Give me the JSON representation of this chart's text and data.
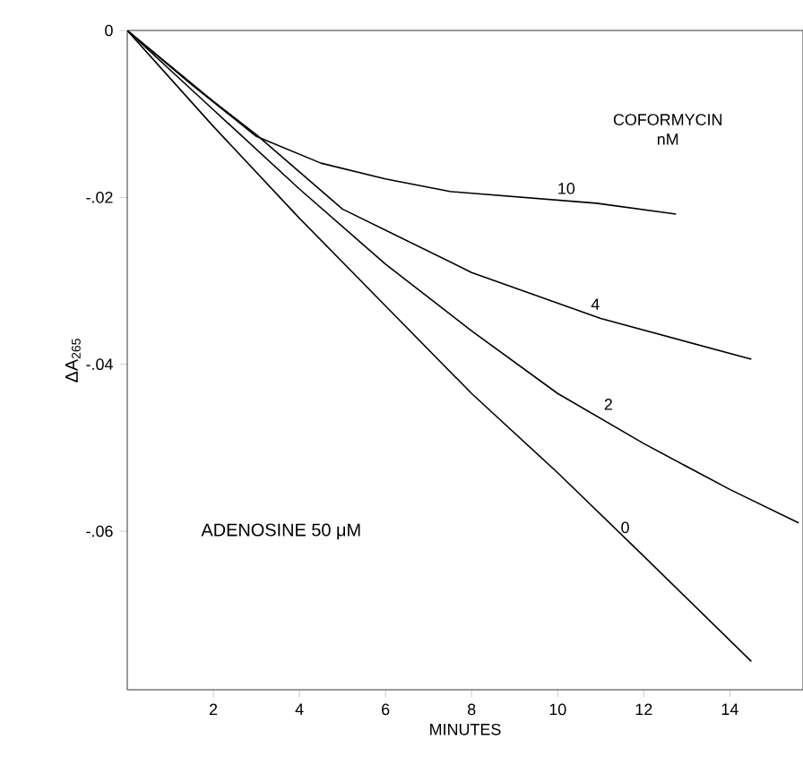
{
  "chart_data": {
    "type": "line",
    "xlabel": "MINUTES",
    "ylabel": "ΔA$_{265}$",
    "legend_title": "COFORMYCIN nM",
    "annotations": [
      "ADENOSINE 50 μM"
    ],
    "xlim": [
      0,
      15.7
    ],
    "ylim": [
      -0.079,
      0
    ],
    "xticks": [
      2,
      4,
      6,
      8,
      10,
      12,
      14
    ],
    "yticks": [
      {
        "value": 0,
        "label": "0"
      },
      {
        "value": -0.02,
        "label": "-.02"
      },
      {
        "value": -0.04,
        "label": "-.04"
      },
      {
        "value": -0.06,
        "label": "-.06"
      }
    ],
    "grid": false,
    "marker": "none",
    "line_style": "solid",
    "series": [
      {
        "name": "10",
        "color": "#000000",
        "x": [
          0,
          1.5,
          3,
          4.5,
          6,
          7.5,
          10.9,
          12.75
        ],
        "values": [
          0,
          -0.0065,
          -0.0127,
          -0.0159,
          -0.0178,
          -0.0193,
          -0.0207,
          -0.022
        ]
      },
      {
        "name": "4",
        "color": "#000000",
        "x": [
          0,
          2,
          3,
          5,
          8,
          11,
          14.5
        ],
        "values": [
          0,
          -0.0085,
          -0.0125,
          -0.0214,
          -0.029,
          -0.0345,
          -0.0394
        ]
      },
      {
        "name": "2",
        "color": "#000000",
        "x": [
          0,
          2,
          4,
          6,
          8,
          10,
          12,
          14,
          15.6
        ],
        "values": [
          0,
          -0.0095,
          -0.019,
          -0.028,
          -0.036,
          -0.0435,
          -0.0495,
          -0.055,
          -0.059
        ]
      },
      {
        "name": "0",
        "color": "#000000",
        "x": [
          0,
          2,
          4,
          6,
          8,
          10,
          12,
          14.5
        ],
        "values": [
          0,
          -0.0115,
          -0.0225,
          -0.033,
          -0.0435,
          -0.053,
          -0.063,
          -0.0756
        ]
      }
    ]
  }
}
